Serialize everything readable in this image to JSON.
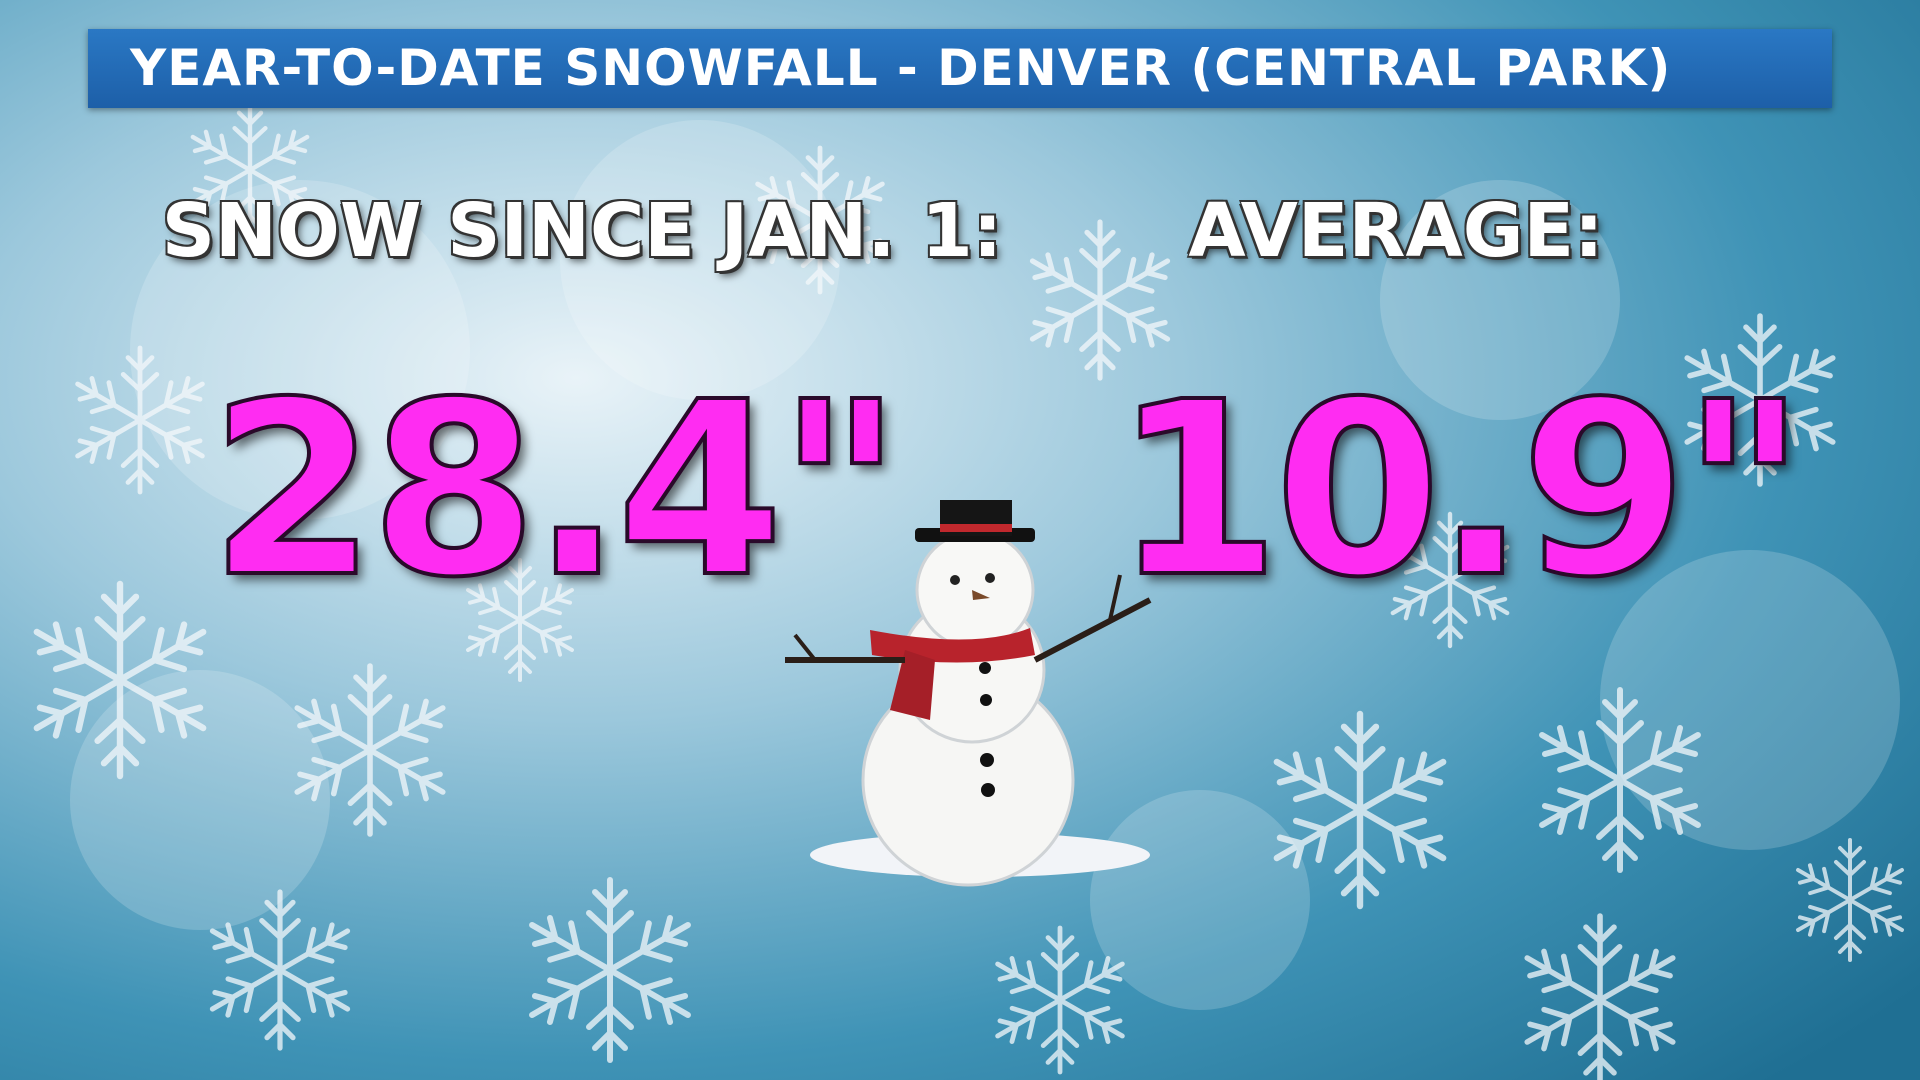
{
  "header": {
    "title": "YEAR-TO-DATE SNOWFALL - DENVER (CENTRAL PARK)"
  },
  "stats": [
    {
      "label": "SNOW SINCE JAN. 1:",
      "value": "28.4\""
    },
    {
      "label": "AVERAGE:",
      "value": "10.9\""
    }
  ]
}
